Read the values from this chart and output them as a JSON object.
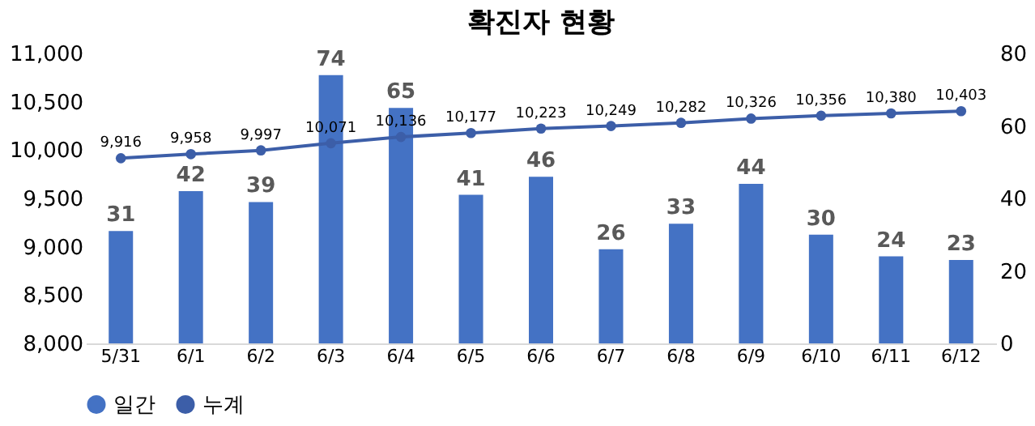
{
  "chart_data": {
    "type": "bar",
    "title": "확진자 현황",
    "categories": [
      "5/31",
      "6/1",
      "6/2",
      "6/3",
      "6/4",
      "6/5",
      "6/6",
      "6/7",
      "6/8",
      "6/9",
      "6/10",
      "6/11",
      "6/12"
    ],
    "series": [
      {
        "name": "일간",
        "axis": "y2",
        "color": "#4472c4",
        "values": [
          31,
          42,
          39,
          74,
          65,
          41,
          46,
          26,
          33,
          44,
          30,
          24,
          23
        ]
      },
      {
        "name": "누계",
        "type": "line",
        "color": "#3c5ea8",
        "values": [
          9916,
          9958,
          9997,
          10071,
          10136,
          10177,
          10223,
          10249,
          10282,
          10326,
          10356,
          10380,
          10403
        ],
        "value_labels": [
          "9,916",
          "9,958",
          "9,997",
          "10,071",
          "10,136",
          "10,177",
          "10,223",
          "10,249",
          "10,282",
          "10,326",
          "10,356",
          "10,380",
          "10,403"
        ]
      }
    ],
    "ylim": [
      8000,
      11000
    ],
    "yticks": [
      {
        "value": 8000,
        "label": "8,000"
      },
      {
        "value": 8500,
        "label": "8,500"
      },
      {
        "value": 9000,
        "label": "9,000"
      },
      {
        "value": 9500,
        "label": "9,500"
      },
      {
        "value": 10000,
        "label": "10,000"
      },
      {
        "value": 10500,
        "label": "10,500"
      },
      {
        "value": 11000,
        "label": "11,000"
      }
    ],
    "y2lim": [
      0,
      80
    ],
    "y2ticks": [
      0,
      20,
      40,
      60,
      80
    ],
    "data_labels": true,
    "marker": "circle",
    "line_style": "solid",
    "grid": false,
    "legend": "bottom"
  }
}
